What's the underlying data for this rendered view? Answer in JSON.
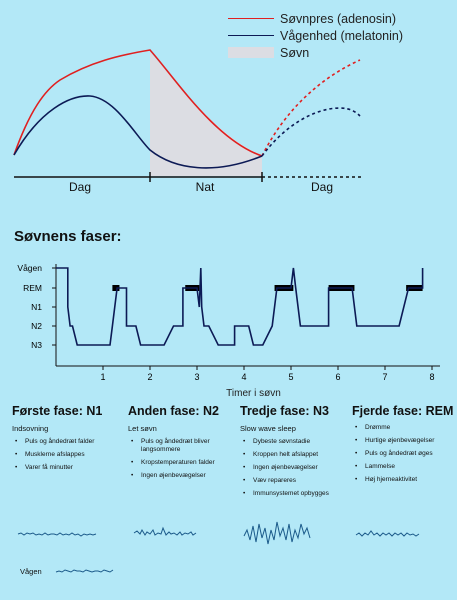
{
  "legend": [
    {
      "label": "Søvnpres (adenosin)",
      "color": "#e02020",
      "type": "line"
    },
    {
      "label": "Vågenhed (melatonin)",
      "color": "#0c1a55",
      "type": "line"
    },
    {
      "label": "Søvn",
      "color": "#dcdde3",
      "type": "box"
    }
  ],
  "timeline": {
    "labels": [
      "Dag",
      "Nat",
      "Dag"
    ]
  },
  "section_title": "Søvnens faser:",
  "chart_data": {
    "type": "line",
    "title": "",
    "xlabel": "Timer i søvn",
    "ylabel": "",
    "x_ticks": [
      1,
      2,
      3,
      4,
      5,
      6,
      7,
      8
    ],
    "xlim": [
      0,
      8
    ],
    "y_categories": [
      "Vågen",
      "REM",
      "N1",
      "N2",
      "N3"
    ],
    "series": [
      {
        "x": [
          0,
          0.25,
          0.25,
          0.3,
          0.35,
          0.45,
          1.15,
          1.2,
          1.3,
          1.5,
          1.5,
          1.7,
          1.8,
          2.3,
          2.5,
          2.7,
          2.7,
          3.0,
          3.05,
          3.08,
          3.1,
          3.15,
          3.25,
          3.45,
          3.8,
          3.8,
          4.1,
          4.2,
          4.4,
          4.6,
          4.6,
          4.7,
          5.0,
          5.05,
          5.1,
          5.2,
          5.3,
          5.6,
          5.8,
          5.8,
          6.3,
          6.4,
          7.3,
          7.5,
          7.5,
          7.8,
          7.8
        ],
        "y": [
          "Vågen",
          "Vågen",
          "N1",
          "N2",
          "N2",
          "N3",
          "N3",
          "N2",
          "REM",
          "REM",
          "N2",
          "N2",
          "N3",
          "N3",
          "N2",
          "N2",
          "REM",
          "REM",
          "N1",
          "Vågen",
          "N1",
          "N2",
          "N2",
          "N3",
          "N3",
          "N2",
          "N2",
          "N3",
          "N3",
          "N2",
          "N2",
          "REM",
          "REM",
          "Vågen",
          "REM",
          "N2",
          "N2",
          "N2",
          "N2",
          "REM",
          "REM",
          "N2",
          "N2",
          "REM",
          "REM",
          "REM",
          "Vågen"
        ]
      }
    ],
    "rem_periods": [
      [
        1.2,
        1.35
      ],
      [
        2.75,
        3.05
      ],
      [
        4.65,
        5.05
      ],
      [
        5.8,
        6.35
      ],
      [
        7.45,
        7.8
      ]
    ]
  },
  "phases": [
    {
      "title": "Første fase: N1",
      "subtitle": "Indsovning",
      "items": [
        "Puls og åndedræt falder",
        "Musklerne afslappes",
        "Varer få minutter"
      ]
    },
    {
      "title": "Anden fase: N2",
      "subtitle": "Let søvn",
      "items": [
        "Puls og åndedræt bliver langsommere",
        "Kropstemperaturen falder",
        "Ingen øjenbevægelser"
      ]
    },
    {
      "title": "Tredje fase: N3",
      "subtitle": "Slow wave sleep",
      "items": [
        "Dybeste søvnstadie",
        "Kroppen helt afslappet",
        "Ingen øjenbevægelser",
        "Væv repareres",
        "Immunsystemet opbygges"
      ]
    },
    {
      "title": "Fjerde fase: REM",
      "subtitle": "",
      "items": [
        "Drømme",
        "Hurtige øjenbevægelser",
        "Puls og åndedræt øges",
        "Lammelse",
        "Høj hjerneaktivitet"
      ]
    }
  ],
  "awake_label": "Vågen",
  "colors": {
    "background": "#b3e8f7",
    "pressure": "#e02020",
    "alertness": "#0c1a55",
    "sleep_fill": "#dcdde3",
    "wave": "#1b5a8a"
  }
}
